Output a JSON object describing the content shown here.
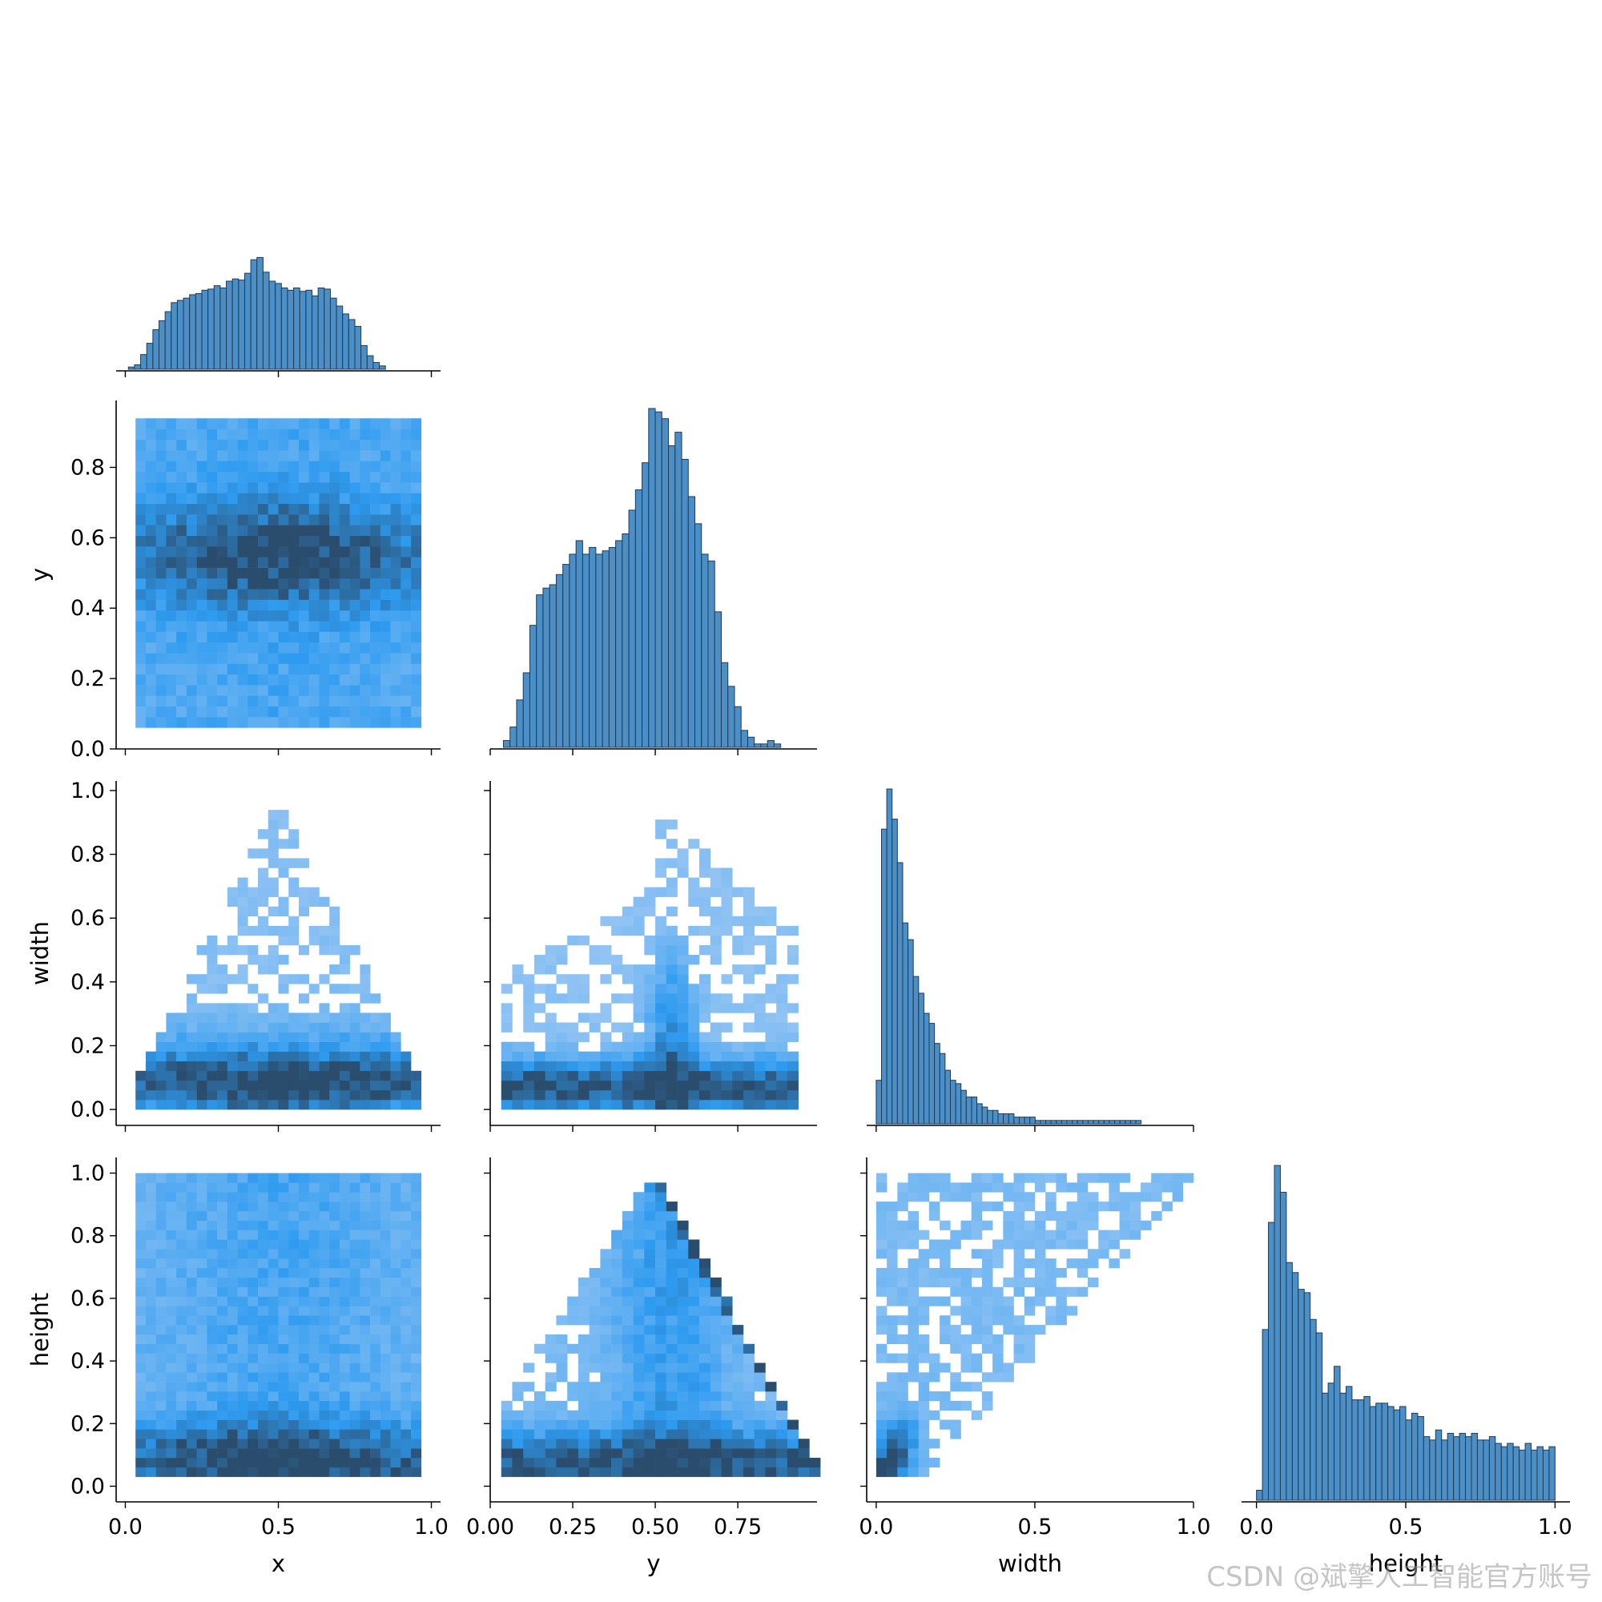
{
  "chart_data": {
    "type": "pairplot",
    "variables": [
      "x",
      "y",
      "width",
      "height"
    ],
    "corner": true,
    "colors": {
      "hist_fill": "#4c8fc6",
      "hist_edge": "#1f3b55",
      "heat_light": "#a9cdf4",
      "heat_mid": "#2e9bf0",
      "heat_dark": "#2b4d6d"
    },
    "axes": {
      "x": {
        "lim": [
          -0.03,
          1.03
        ],
        "ticks": [
          0.0,
          0.5,
          1.0
        ],
        "tick_labels": [
          "0.0",
          "0.5",
          "1.0"
        ]
      },
      "y": {
        "lim": [
          0.0,
          0.99
        ],
        "ticks": [
          0.0,
          0.2,
          0.4,
          0.6,
          0.8
        ],
        "tick_labels": [
          "0.0",
          "0.2",
          "0.4",
          "0.6",
          "0.8"
        ],
        "col_ticks": [
          0.0,
          0.25,
          0.5,
          0.75
        ],
        "col_tick_labels": [
          "0.00",
          "0.25",
          "0.50",
          "0.75"
        ]
      },
      "width": {
        "lim": [
          -0.05,
          1.03
        ],
        "ticks": [
          0.0,
          0.2,
          0.4,
          0.6,
          0.8,
          1.0
        ],
        "tick_labels": [
          "0.0",
          "0.2",
          "0.4",
          "0.6",
          "0.8",
          "1.0"
        ],
        "col_lim": [
          -0.03,
          1.0
        ],
        "col_ticks": [
          0.0,
          0.5,
          1.0
        ],
        "col_tick_labels": [
          "0.0",
          "0.5",
          "1.0"
        ]
      },
      "height": {
        "lim": [
          -0.05,
          1.05
        ],
        "ticks": [
          0.0,
          0.2,
          0.4,
          0.6,
          0.8,
          1.0
        ],
        "tick_labels": [
          "0.0",
          "0.2",
          "0.4",
          "0.6",
          "0.8",
          "1.0"
        ],
        "col_lim": [
          -0.05,
          1.05
        ],
        "col_ticks": [
          0.0,
          0.5,
          1.0
        ],
        "col_tick_labels": [
          "0.0",
          "0.5",
          "1.0"
        ]
      }
    },
    "histograms": {
      "x": {
        "bin_start": 0.01,
        "bin_width": 0.02,
        "relative_heights": [
          0.02,
          0.04,
          0.13,
          0.23,
          0.35,
          0.43,
          0.51,
          0.59,
          0.61,
          0.63,
          0.66,
          0.67,
          0.7,
          0.71,
          0.74,
          0.72,
          0.78,
          0.8,
          0.79,
          0.85,
          0.97,
          0.99,
          0.86,
          0.78,
          0.76,
          0.72,
          0.7,
          0.72,
          0.69,
          0.7,
          0.65,
          0.72,
          0.71,
          0.63,
          0.56,
          0.49,
          0.44,
          0.38,
          0.21,
          0.12,
          0.06,
          0.03
        ]
      },
      "y": {
        "bin_start": 0.04,
        "bin_width": 0.02,
        "relative_heights": [
          0.02,
          0.06,
          0.14,
          0.22,
          0.36,
          0.45,
          0.47,
          0.48,
          0.51,
          0.54,
          0.57,
          0.61,
          0.57,
          0.59,
          0.57,
          0.58,
          0.59,
          0.61,
          0.63,
          0.7,
          0.76,
          0.84,
          1.0,
          0.99,
          0.97,
          0.89,
          0.93,
          0.85,
          0.74,
          0.66,
          0.57,
          0.55,
          0.4,
          0.25,
          0.18,
          0.12,
          0.05,
          0.03,
          0.01,
          0.01,
          0.02,
          0.01
        ]
      },
      "width": {
        "bin_start": 0.0,
        "bin_width": 0.0167,
        "relative_heights": [
          0.13,
          0.88,
          1.0,
          0.91,
          0.78,
          0.6,
          0.55,
          0.44,
          0.39,
          0.33,
          0.3,
          0.24,
          0.21,
          0.16,
          0.13,
          0.12,
          0.1,
          0.08,
          0.08,
          0.06,
          0.05,
          0.04,
          0.04,
          0.03,
          0.03,
          0.03,
          0.02,
          0.02,
          0.02,
          0.02,
          0.01,
          0.01,
          0.01,
          0.01,
          0.01,
          0.01,
          0.01,
          0.01,
          0.01,
          0.01,
          0.01,
          0.01,
          0.01,
          0.01,
          0.01,
          0.01,
          0.01,
          0.01,
          0.01,
          0.01
        ]
      },
      "height": {
        "bin_start": 0.0,
        "bin_width": 0.02,
        "relative_heights": [
          0.03,
          0.51,
          0.83,
          1.0,
          0.92,
          0.71,
          0.68,
          0.63,
          0.62,
          0.54,
          0.5,
          0.32,
          0.35,
          0.4,
          0.32,
          0.34,
          0.3,
          0.3,
          0.31,
          0.28,
          0.29,
          0.29,
          0.28,
          0.27,
          0.28,
          0.24,
          0.26,
          0.25,
          0.19,
          0.18,
          0.21,
          0.18,
          0.2,
          0.19,
          0.2,
          0.19,
          0.2,
          0.18,
          0.18,
          0.19,
          0.17,
          0.16,
          0.17,
          0.16,
          0.15,
          0.17,
          0.15,
          0.16,
          0.15,
          0.16
        ]
      }
    },
    "watermark": "CSDN @斌擎人工智能官方账号"
  }
}
